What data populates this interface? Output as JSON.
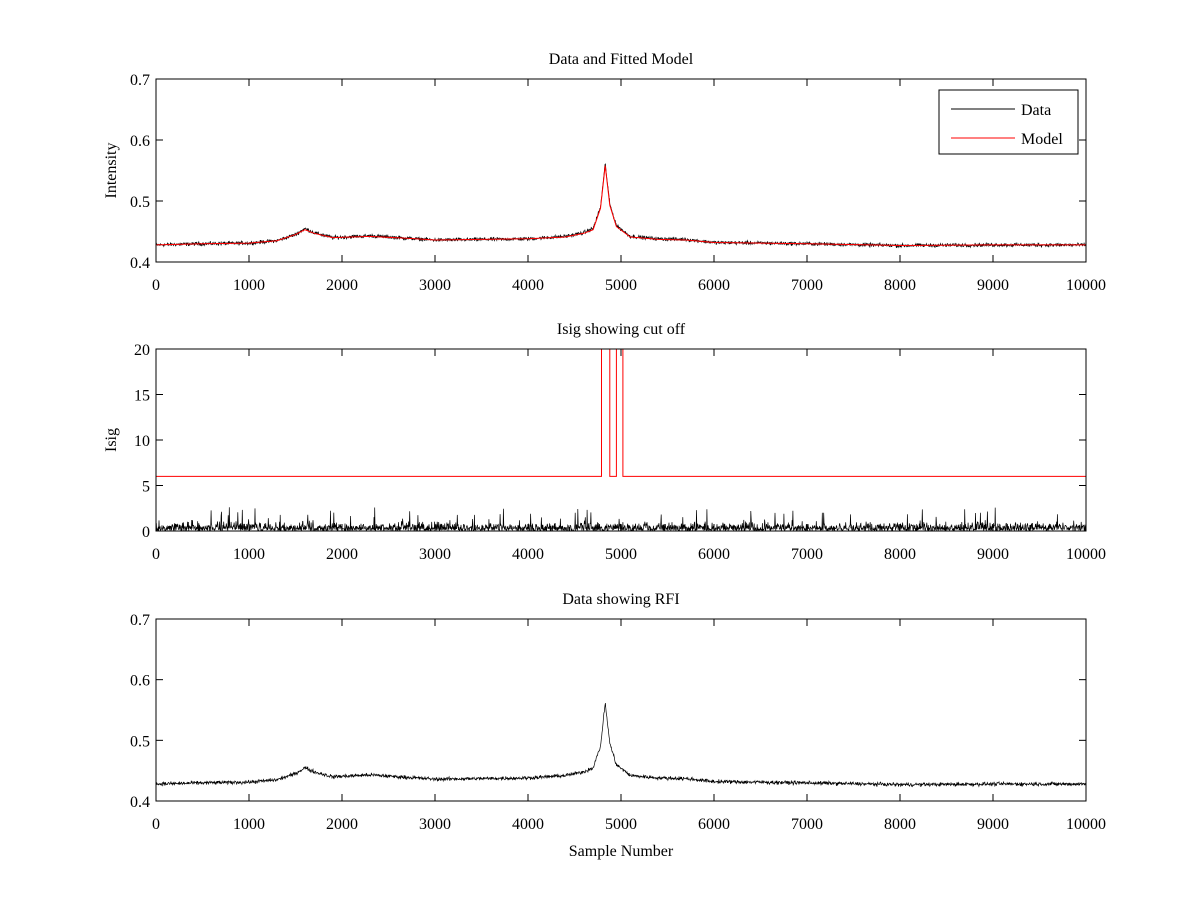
{
  "chart_data": [
    {
      "type": "line",
      "title": "Data and Fitted Model",
      "xlabel": "",
      "ylabel": "Intensity",
      "xlim": [
        0,
        10000
      ],
      "ylim": [
        0.4,
        0.7
      ],
      "xticks": [
        0,
        1000,
        2000,
        3000,
        4000,
        5000,
        6000,
        7000,
        8000,
        9000,
        10000
      ],
      "yticks": [
        0.4,
        0.5,
        0.6,
        0.7
      ],
      "xtick_labels": [
        "0",
        "1000",
        "2000",
        "3000",
        "4000",
        "5000",
        "6000",
        "7000",
        "8000",
        "9000",
        "10000"
      ],
      "ytick_labels": [
        "0.4",
        "0.5",
        "0.6",
        "0.7"
      ],
      "grid": false,
      "legend": "top-right",
      "series": [
        {
          "name": "Data",
          "color": "#000000",
          "style": "noisy",
          "noise": 0.0045,
          "x": [
            0,
            500,
            1000,
            1300,
            1500,
            1600,
            1700,
            1900,
            2300,
            2700,
            3000,
            3500,
            4000,
            4400,
            4600,
            4700,
            4780,
            4830,
            4880,
            4950,
            5100,
            5400,
            5700,
            6000,
            7000,
            8000,
            9000,
            10000
          ],
          "y": [
            0.428,
            0.43,
            0.431,
            0.435,
            0.445,
            0.455,
            0.448,
            0.44,
            0.443,
            0.439,
            0.436,
            0.437,
            0.438,
            0.442,
            0.448,
            0.455,
            0.49,
            0.562,
            0.495,
            0.46,
            0.442,
            0.438,
            0.437,
            0.432,
            0.43,
            0.427,
            0.428,
            0.428
          ]
        },
        {
          "name": "Model",
          "color": "#ff0000",
          "style": "smooth",
          "x": [
            0,
            500,
            1000,
            1300,
            1500,
            1600,
            1700,
            1900,
            2300,
            2700,
            3000,
            3500,
            4000,
            4400,
            4600,
            4700,
            4780,
            4830,
            4880,
            4950,
            5100,
            5400,
            5700,
            6000,
            7000,
            8000,
            9000,
            10000
          ],
          "y": [
            0.428,
            0.43,
            0.431,
            0.435,
            0.445,
            0.453,
            0.447,
            0.44,
            0.442,
            0.439,
            0.436,
            0.437,
            0.438,
            0.441,
            0.447,
            0.453,
            0.488,
            0.558,
            0.493,
            0.458,
            0.441,
            0.437,
            0.436,
            0.432,
            0.43,
            0.427,
            0.428,
            0.428
          ]
        }
      ]
    },
    {
      "type": "line",
      "title": "Isig showing cut off",
      "xlabel": "",
      "ylabel": "Isig",
      "xlim": [
        0,
        10000
      ],
      "ylim": [
        0,
        20
      ],
      "xticks": [
        0,
        1000,
        2000,
        3000,
        4000,
        5000,
        6000,
        7000,
        8000,
        9000,
        10000
      ],
      "yticks": [
        0,
        5,
        10,
        15,
        20
      ],
      "xtick_labels": [
        "0",
        "1000",
        "2000",
        "3000",
        "4000",
        "5000",
        "6000",
        "7000",
        "8000",
        "9000",
        "10000"
      ],
      "ytick_labels": [
        "0",
        "5",
        "10",
        "15",
        "20"
      ],
      "grid": false,
      "series": [
        {
          "color": "#000000",
          "style": "spiky",
          "x": [
            0,
            10000
          ],
          "y": [
            0.8,
            0.8
          ],
          "noise": 0.8
        },
        {
          "color": "#ff0000",
          "style": "step",
          "x": [
            0,
            4790,
            4790,
            4880,
            4880,
            4950,
            4950,
            5020,
            5020,
            10000
          ],
          "y": [
            6,
            6,
            20,
            20,
            6,
            6,
            20,
            20,
            6,
            6
          ]
        }
      ]
    },
    {
      "type": "line",
      "title": "Data showing RFI",
      "xlabel": "Sample Number",
      "ylabel": "",
      "xlim": [
        0,
        10000
      ],
      "ylim": [
        0.4,
        0.7
      ],
      "xticks": [
        0,
        1000,
        2000,
        3000,
        4000,
        5000,
        6000,
        7000,
        8000,
        9000,
        10000
      ],
      "yticks": [
        0.4,
        0.5,
        0.6,
        0.7
      ],
      "xtick_labels": [
        "0",
        "1000",
        "2000",
        "3000",
        "4000",
        "5000",
        "6000",
        "7000",
        "8000",
        "9000",
        "10000"
      ],
      "ytick_labels": [
        "0.4",
        "0.5",
        "0.6",
        "0.7"
      ],
      "grid": false,
      "series": [
        {
          "color": "#000000",
          "style": "noisy",
          "noise": 0.0045,
          "x": [
            0,
            500,
            1000,
            1300,
            1500,
            1600,
            1700,
            1900,
            2300,
            2700,
            3000,
            3500,
            4000,
            4400,
            4600,
            4700,
            4780,
            4830,
            4880,
            4950,
            5100,
            5400,
            5700,
            6000,
            7000,
            8000,
            9000,
            10000
          ],
          "y": [
            0.428,
            0.43,
            0.431,
            0.435,
            0.445,
            0.455,
            0.448,
            0.44,
            0.443,
            0.439,
            0.436,
            0.437,
            0.438,
            0.442,
            0.448,
            0.455,
            0.49,
            0.562,
            0.495,
            0.46,
            0.442,
            0.438,
            0.437,
            0.432,
            0.43,
            0.427,
            0.428,
            0.428
          ]
        }
      ]
    }
  ]
}
